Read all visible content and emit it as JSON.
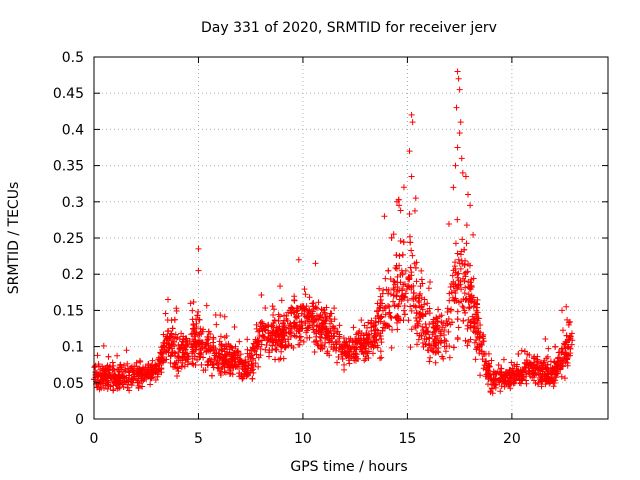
{
  "chart_data": {
    "type": "scatter",
    "title": "Day 331 of 2020, SRMTID for receiver jerv",
    "xlabel": "GPS time / hours",
    "ylabel": "SRMTID / TECUs",
    "xlim": [
      0,
      24.6
    ],
    "ylim": [
      0,
      0.5
    ],
    "xticks": [
      0,
      5,
      10,
      15,
      20
    ],
    "xtick_labels": [
      "0",
      "5",
      "10",
      "15",
      "20"
    ],
    "yticks": [
      0,
      0.05,
      0.1,
      0.15,
      0.2,
      0.25,
      0.3,
      0.35,
      0.4,
      0.45,
      0.5
    ],
    "ytick_labels": [
      "0",
      "0.05",
      "0.1",
      "0.15",
      "0.2",
      "0.25",
      "0.3",
      "0.35",
      "0.4",
      "0.45",
      "0.5"
    ],
    "grid": true,
    "series": [
      {
        "name": "SRMTID",
        "color": "#ff0000",
        "marker": "plus",
        "profile": [
          {
            "x": 0.0,
            "mean": 0.06,
            "spread": 0.015
          },
          {
            "x": 1.0,
            "mean": 0.055,
            "spread": 0.018
          },
          {
            "x": 2.0,
            "mean": 0.06,
            "spread": 0.015
          },
          {
            "x": 3.0,
            "mean": 0.065,
            "spread": 0.013
          },
          {
            "x": 3.5,
            "mean": 0.11,
            "spread": 0.03
          },
          {
            "x": 4.0,
            "mean": 0.09,
            "spread": 0.03
          },
          {
            "x": 5.0,
            "mean": 0.11,
            "spread": 0.035
          },
          {
            "x": 5.5,
            "mean": 0.09,
            "spread": 0.025
          },
          {
            "x": 6.5,
            "mean": 0.08,
            "spread": 0.022
          },
          {
            "x": 7.5,
            "mean": 0.075,
            "spread": 0.02
          },
          {
            "x": 8.0,
            "mean": 0.12,
            "spread": 0.025
          },
          {
            "x": 9.0,
            "mean": 0.115,
            "spread": 0.03
          },
          {
            "x": 10.0,
            "mean": 0.145,
            "spread": 0.03
          },
          {
            "x": 11.0,
            "mean": 0.125,
            "spread": 0.03
          },
          {
            "x": 12.0,
            "mean": 0.095,
            "spread": 0.02
          },
          {
            "x": 13.0,
            "mean": 0.1,
            "spread": 0.02
          },
          {
            "x": 14.0,
            "mean": 0.15,
            "spread": 0.045
          },
          {
            "x": 14.7,
            "mean": 0.18,
            "spread": 0.055
          },
          {
            "x": 15.3,
            "mean": 0.18,
            "spread": 0.06
          },
          {
            "x": 16.0,
            "mean": 0.12,
            "spread": 0.04
          },
          {
            "x": 16.8,
            "mean": 0.11,
            "spread": 0.035
          },
          {
            "x": 17.5,
            "mean": 0.2,
            "spread": 0.08
          },
          {
            "x": 18.3,
            "mean": 0.13,
            "spread": 0.05
          },
          {
            "x": 19.0,
            "mean": 0.05,
            "spread": 0.015
          },
          {
            "x": 20.0,
            "mean": 0.06,
            "spread": 0.015
          },
          {
            "x": 21.0,
            "mean": 0.07,
            "spread": 0.02
          },
          {
            "x": 22.0,
            "mean": 0.06,
            "spread": 0.015
          },
          {
            "x": 22.8,
            "mean": 0.1,
            "spread": 0.03
          }
        ],
        "peaks": [
          {
            "x": 5.0,
            "y": 0.235
          },
          {
            "x": 5.0,
            "y": 0.205
          },
          {
            "x": 9.8,
            "y": 0.22
          },
          {
            "x": 10.6,
            "y": 0.215
          },
          {
            "x": 13.9,
            "y": 0.28
          },
          {
            "x": 14.5,
            "y": 0.3
          },
          {
            "x": 14.6,
            "y": 0.295
          },
          {
            "x": 15.2,
            "y": 0.42
          },
          {
            "x": 15.25,
            "y": 0.41
          },
          {
            "x": 15.1,
            "y": 0.37
          },
          {
            "x": 15.2,
            "y": 0.335
          },
          {
            "x": 15.4,
            "y": 0.305
          },
          {
            "x": 17.4,
            "y": 0.48
          },
          {
            "x": 17.45,
            "y": 0.47
          },
          {
            "x": 17.5,
            "y": 0.455
          },
          {
            "x": 17.35,
            "y": 0.43
          },
          {
            "x": 17.55,
            "y": 0.41
          },
          {
            "x": 17.5,
            "y": 0.395
          },
          {
            "x": 17.4,
            "y": 0.375
          },
          {
            "x": 17.6,
            "y": 0.36
          },
          {
            "x": 17.3,
            "y": 0.35
          },
          {
            "x": 17.65,
            "y": 0.34
          },
          {
            "x": 17.8,
            "y": 0.335
          },
          {
            "x": 17.2,
            "y": 0.32
          },
          {
            "x": 17.9,
            "y": 0.31
          },
          {
            "x": 18.0,
            "y": 0.295
          },
          {
            "x": 22.6,
            "y": 0.155
          },
          {
            "x": 22.4,
            "y": 0.15
          }
        ],
        "n_points": 2600,
        "range_hours": [
          0,
          22.9
        ]
      }
    ]
  }
}
